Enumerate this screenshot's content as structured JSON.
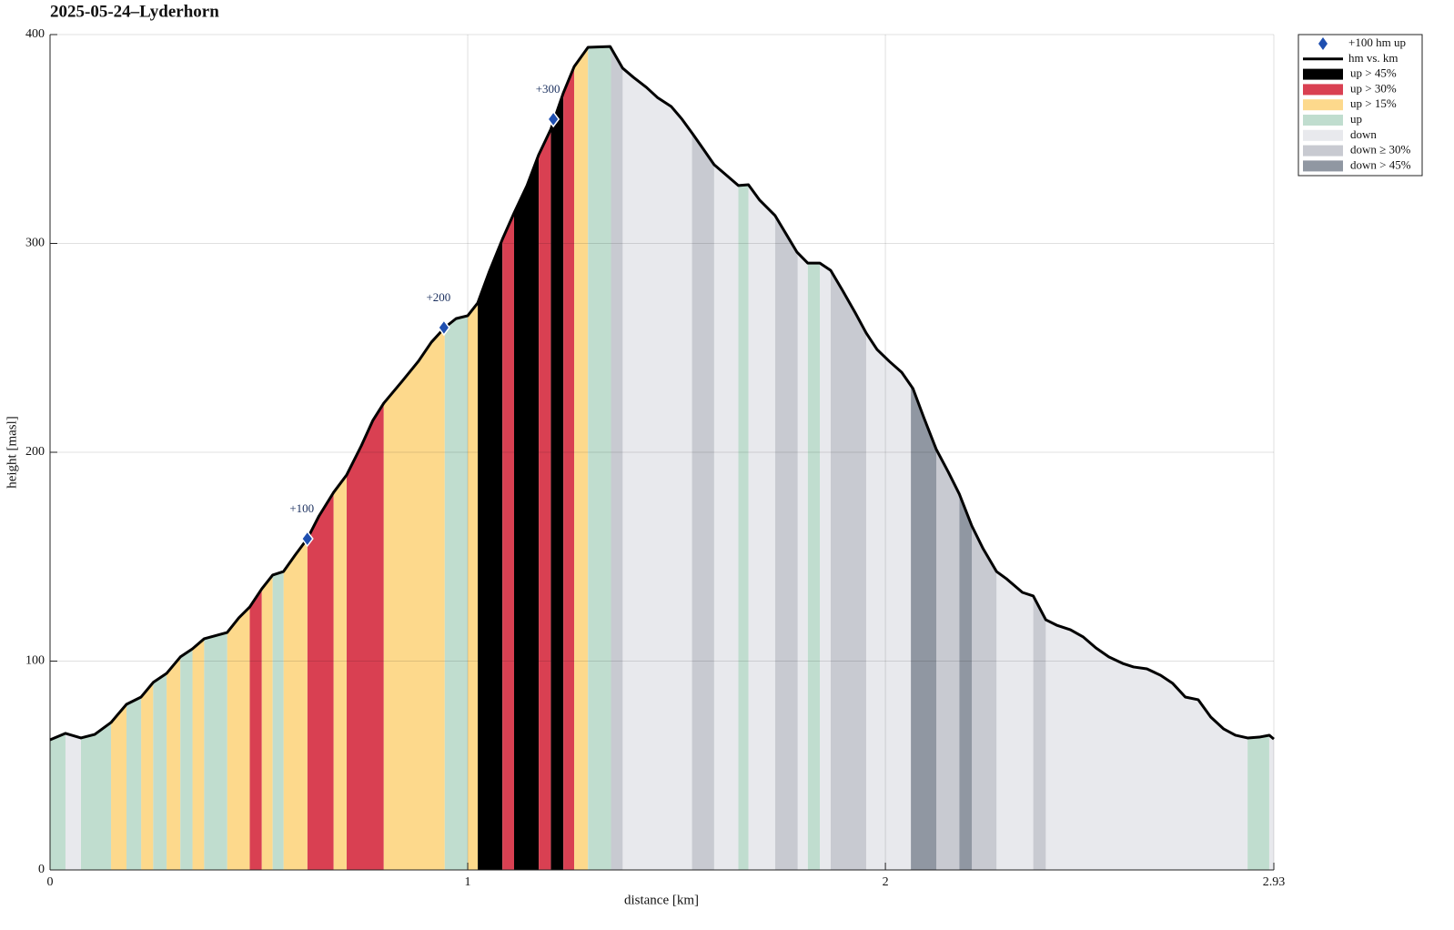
{
  "chart_data": {
    "type": "area",
    "title": "2025-05-24–Lyderhorn",
    "xlabel": "distance [km]",
    "ylabel": "height [masl]",
    "xlim": [
      0,
      2.93
    ],
    "ylim": [
      0,
      400
    ],
    "xticks": [
      0,
      1,
      2,
      2.93
    ],
    "yticks": [
      0,
      100,
      200,
      300,
      400
    ],
    "grid": true,
    "legend": "outside right",
    "markers": {
      "name": "+100 hm up",
      "color": "#1f4fb0",
      "x": [
        0.616,
        0.943,
        1.205
      ],
      "values": [
        158.6,
        259.7,
        359.5
      ],
      "labels": [
        "+100",
        "+200",
        "+300"
      ]
    },
    "profile": {
      "name": "hm vs. km",
      "color": "#000000",
      "x": [
        0,
        0.037,
        0.074,
        0.107,
        0.146,
        0.183,
        0.218,
        0.247,
        0.279,
        0.312,
        0.341,
        0.369,
        0.424,
        0.452,
        0.478,
        0.507,
        0.533,
        0.559,
        0.587,
        0.616,
        0.644,
        0.679,
        0.71,
        0.745,
        0.773,
        0.799,
        0.843,
        0.882,
        0.913,
        0.945,
        0.972,
        1.0,
        1.024,
        1.052,
        1.083,
        1.111,
        1.142,
        1.17,
        1.199,
        1.229,
        1.255,
        1.288,
        1.341,
        1.371,
        1.397,
        1.428,
        1.454,
        1.487,
        1.513,
        1.537,
        1.563,
        1.59,
        1.618,
        1.648,
        1.672,
        1.699,
        1.736,
        1.762,
        1.788,
        1.814,
        1.843,
        1.869,
        1.897,
        1.928,
        1.954,
        1.98,
        2.009,
        2.039,
        2.066,
        2.092,
        2.122,
        2.151,
        2.177,
        2.207,
        2.234,
        2.266,
        2.29,
        2.328,
        2.354,
        2.384,
        2.41,
        2.443,
        2.474,
        2.504,
        2.535,
        2.568,
        2.594,
        2.626,
        2.659,
        2.688,
        2.718,
        2.749,
        2.779,
        2.81,
        2.838,
        2.867,
        2.895,
        2.919,
        2.93
      ],
      "values": [
        62.3,
        65.4,
        63.2,
        64.9,
        70.6,
        79.3,
        82.8,
        89.8,
        94.1,
        102,
        105.9,
        110.7,
        113.7,
        120.7,
        125.9,
        134.6,
        141.2,
        142.9,
        150.8,
        158.6,
        169.5,
        180.8,
        189.1,
        203,
        215.3,
        223.5,
        234,
        243.6,
        252.7,
        259.7,
        264,
        265.4,
        271.5,
        286.7,
        302,
        314.6,
        327.7,
        342.5,
        354.7,
        372.1,
        384.7,
        393.9,
        394.3,
        383.9,
        379.5,
        374.7,
        369.9,
        365.6,
        359.5,
        352.9,
        345.5,
        337.7,
        332.9,
        327.7,
        328.1,
        320.7,
        313.3,
        304.6,
        295.9,
        290.6,
        290.6,
        287.1,
        277.6,
        266.7,
        257.1,
        249.2,
        243.6,
        238.3,
        230.5,
        216.6,
        201.3,
        190.4,
        180,
        164.7,
        153.8,
        142.9,
        139.4,
        132.9,
        131.2,
        119.8,
        117.2,
        115,
        111.5,
        106.3,
        102,
        98.9,
        97.2,
        96.3,
        93.2,
        89.3,
        82.8,
        81.5,
        73.2,
        67.5,
        64.5,
        63.2,
        63.6,
        64.5,
        62.7
      ]
    },
    "bands": [
      {
        "name": "up > 45%",
        "color": "#000000",
        "ranges": [
          [
            1.024,
            1.083
          ],
          [
            1.111,
            1.17
          ],
          [
            1.199,
            1.229
          ]
        ]
      },
      {
        "name": "up > 30%",
        "color": "#d94052",
        "ranges": [
          [
            0.478,
            0.507
          ],
          [
            0.616,
            0.679
          ],
          [
            0.71,
            0.799
          ],
          [
            1.083,
            1.111
          ],
          [
            1.17,
            1.199
          ],
          [
            1.229,
            1.255
          ]
        ]
      },
      {
        "name": "up > 15%",
        "color": "#fdd98c",
        "ranges": [
          [
            0.146,
            0.183
          ],
          [
            0.218,
            0.247
          ],
          [
            0.279,
            0.312
          ],
          [
            0.341,
            0.369
          ],
          [
            0.424,
            0.478
          ],
          [
            0.507,
            0.533
          ],
          [
            0.559,
            0.616
          ],
          [
            0.679,
            0.71
          ],
          [
            0.799,
            0.945
          ],
          [
            1.0,
            1.024
          ],
          [
            1.255,
            1.288
          ]
        ]
      },
      {
        "name": "up",
        "color": "#c0ddcf",
        "ranges": [
          [
            0,
            0.037
          ],
          [
            0.074,
            0.146
          ],
          [
            0.183,
            0.218
          ],
          [
            0.247,
            0.279
          ],
          [
            0.312,
            0.341
          ],
          [
            0.369,
            0.424
          ],
          [
            0.533,
            0.559
          ],
          [
            0.945,
            1.0
          ],
          [
            1.288,
            1.343
          ],
          [
            1.648,
            1.672
          ],
          [
            1.814,
            1.843
          ],
          [
            2.867,
            2.919
          ]
        ]
      },
      {
        "name": "down",
        "color": "#e8e9ed",
        "ranges": [
          [
            0.037,
            0.074
          ],
          [
            1.371,
            1.537
          ],
          [
            1.59,
            1.648
          ],
          [
            1.672,
            1.736
          ],
          [
            1.79,
            1.814
          ],
          [
            1.843,
            1.869
          ],
          [
            1.954,
            2.061
          ],
          [
            2.266,
            2.354
          ],
          [
            2.384,
            2.867
          ],
          [
            2.919,
            2.93
          ]
        ]
      },
      {
        "name": "down ≥ 30%",
        "color": "#c8cad1",
        "ranges": [
          [
            1.343,
            1.371
          ],
          [
            1.537,
            1.59
          ],
          [
            1.736,
            1.79
          ],
          [
            1.869,
            1.954
          ],
          [
            2.122,
            2.177
          ],
          [
            2.207,
            2.266
          ],
          [
            2.354,
            2.384
          ]
        ]
      },
      {
        "name": "down > 45%",
        "color": "#9097a2",
        "ranges": [
          [
            2.061,
            2.122
          ],
          [
            2.177,
            2.207
          ]
        ]
      }
    ]
  }
}
